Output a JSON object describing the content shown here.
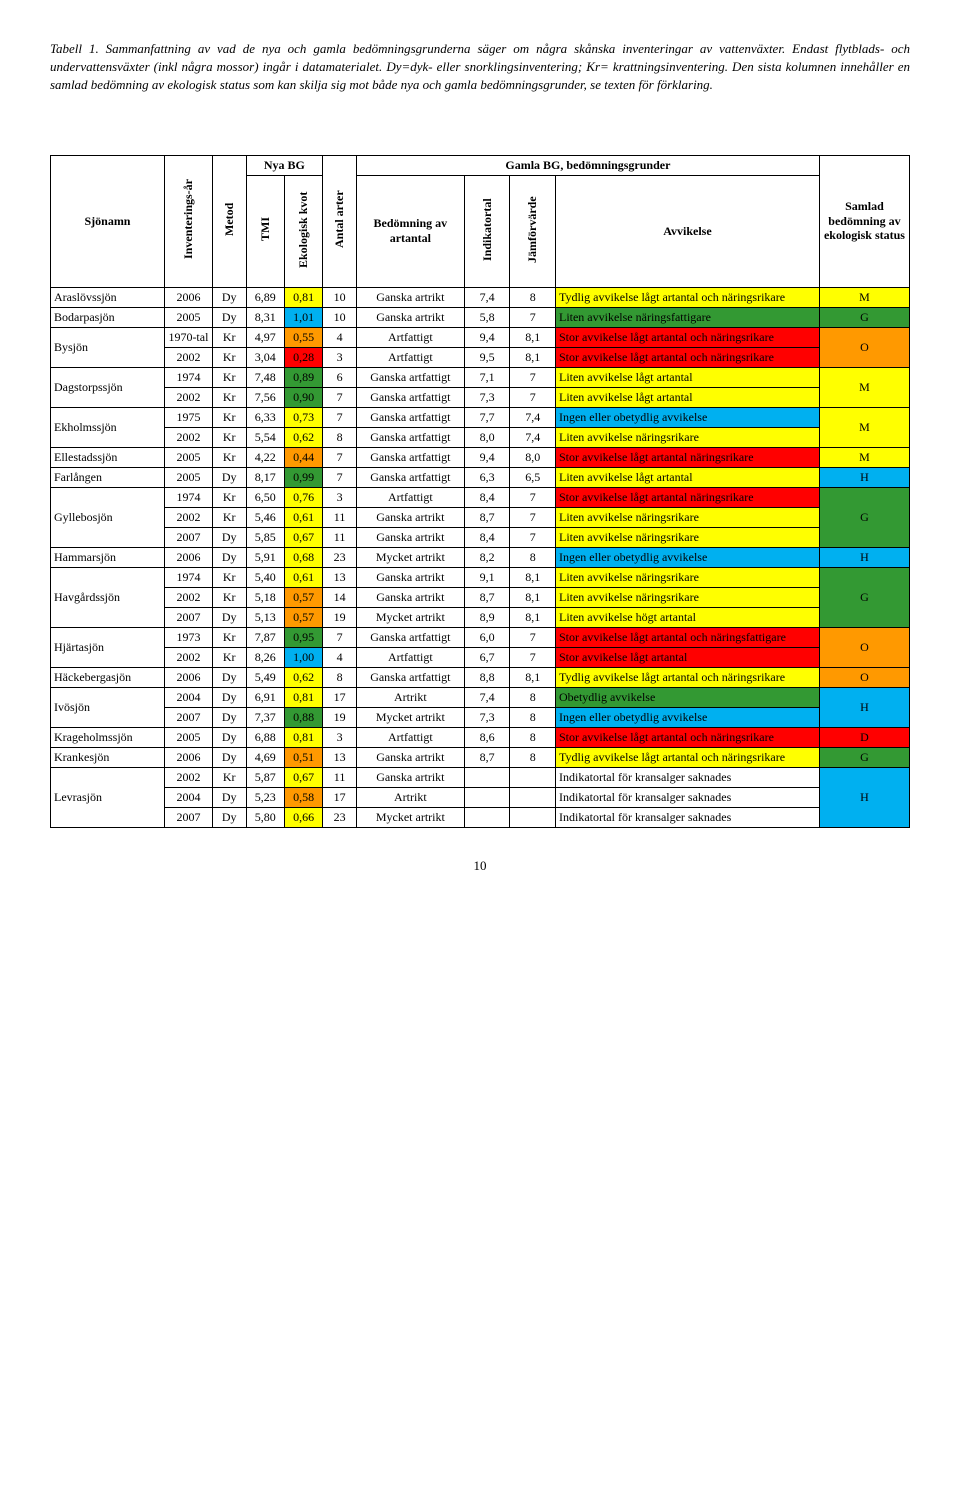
{
  "caption": "Tabell 1. Sammanfattning av vad de nya och gamla bedömningsgrunderna säger om några skånska inventeringar av vattenväxter. Endast flytblads- och undervattensväxter (inkl några mossor) ingår i datamaterialet. Dy=dyk- eller snorklingsinventering; Kr= krattningsinventering. Den sista kolumnen innehåller en samlad bedömning av ekologisk status som kan skilja sig mot både nya och gamla bedömningsgrunder, se texten för förklaring.",
  "colors": {
    "yellow": "#ffff00",
    "orange": "#ff9900",
    "red": "#ff0000",
    "green": "#339933",
    "cyan": "#00b0f0",
    "green2": "#33cc33"
  },
  "headers": {
    "nya": "Nya BG",
    "gamla": "Gamla BG, bedömningsgrunder",
    "sjonamn": "Sjönamn",
    "inv_ar": "Inventerings-år",
    "metod": "Metod",
    "tmi": "TMI",
    "ek_kvot": "Ekologisk kvot",
    "antal": "Antal arter",
    "bedomning": "Bedömning av artantal",
    "indik": "Indikatortal",
    "jamfor": "Jämförvärde",
    "avvik": "Avvikelse",
    "samlad": "Samlad bedömning av ekologisk status"
  },
  "rows": [
    {
      "lake": "Araslövssjön",
      "sub": [
        {
          "ar": "2006",
          "met": "Dy",
          "tmi": "6,89",
          "ek": "0,81",
          "ekc": "yellow",
          "n": "10",
          "bed": "Ganska artrikt",
          "ind": "7,4",
          "jam": "8",
          "avv": "Tydlig avvikelse lågt artantal och näringsrikare",
          "avvc": "yellow"
        }
      ],
      "sam": "M",
      "samc": "yellow"
    },
    {
      "lake": "Bodarpasjön",
      "sub": [
        {
          "ar": "2005",
          "met": "Dy",
          "tmi": "8,31",
          "ek": "1,01",
          "ekc": "cyan",
          "n": "10",
          "bed": "Ganska artrikt",
          "ind": "5,8",
          "jam": "7",
          "avv": "Liten avvikelse näringsfattigare",
          "avvc": "green"
        }
      ],
      "sam": "G",
      "samc": "green"
    },
    {
      "lake": "Bysjön",
      "sub": [
        {
          "ar": "1970-tal",
          "met": "Kr",
          "tmi": "4,97",
          "ek": "0,55",
          "ekc": "orange",
          "n": "4",
          "bed": "Artfattigt",
          "ind": "9,4",
          "jam": "8,1",
          "avv": "Stor avvikelse lågt artantal och näringsrikare",
          "avvc": "red"
        },
        {
          "ar": "2002",
          "met": "Kr",
          "tmi": "3,04",
          "ek": "0,28",
          "ekc": "red",
          "n": "3",
          "bed": "Artfattigt",
          "ind": "9,5",
          "jam": "8,1",
          "avv": "Stor avvikelse lågt artantal och näringsrikare",
          "avvc": "red"
        }
      ],
      "sam": "O",
      "samc": "orange"
    },
    {
      "lake": "Dagstorpssjön",
      "sub": [
        {
          "ar": "1974",
          "met": "Kr",
          "tmi": "7,48",
          "ek": "0,89",
          "ekc": "green",
          "n": "6",
          "bed": "Ganska artfattigt",
          "ind": "7,1",
          "jam": "7",
          "avv": "Liten avvikelse lågt artantal",
          "avvc": "yellow"
        },
        {
          "ar": "2002",
          "met": "Kr",
          "tmi": "7,56",
          "ek": "0,90",
          "ekc": "green",
          "n": "7",
          "bed": "Ganska artfattigt",
          "ind": "7,3",
          "jam": "7",
          "avv": "Liten avvikelse lågt artantal",
          "avvc": "yellow"
        }
      ],
      "sam": "M",
      "samc": "yellow"
    },
    {
      "lake": "Ekholmssjön",
      "sub": [
        {
          "ar": "1975",
          "met": "Kr",
          "tmi": "6,33",
          "ek": "0,73",
          "ekc": "yellow",
          "n": "7",
          "bed": "Ganska artfattigt",
          "ind": "7,7",
          "jam": "7,4",
          "avv": "Ingen eller obetydlig avvikelse",
          "avvc": "cyan"
        },
        {
          "ar": "2002",
          "met": "Kr",
          "tmi": "5,54",
          "ek": "0,62",
          "ekc": "yellow",
          "n": "8",
          "bed": "Ganska artfattigt",
          "ind": "8,0",
          "jam": "7,4",
          "avv": "Liten avvikelse näringsrikare",
          "avvc": "yellow"
        }
      ],
      "sam": "M",
      "samc": "yellow"
    },
    {
      "lake": "Ellestadssjön",
      "sub": [
        {
          "ar": "2005",
          "met": "Kr",
          "tmi": "4,22",
          "ek": "0,44",
          "ekc": "orange",
          "n": "7",
          "bed": "Ganska artfattigt",
          "ind": "9,4",
          "jam": "8,0",
          "avv": "Stor avvikelse lågt artantal näringsrikare",
          "avvc": "red"
        }
      ],
      "sam": "M",
      "samc": "yellow"
    },
    {
      "lake": "Farlången",
      "sub": [
        {
          "ar": "2005",
          "met": "Dy",
          "tmi": "8,17",
          "ek": "0,99",
          "ekc": "green",
          "n": "7",
          "bed": "Ganska artfattigt",
          "ind": "6,3",
          "jam": "6,5",
          "avv": "Liten avvikelse lågt artantal",
          "avvc": "yellow"
        }
      ],
      "sam": "H",
      "samc": "cyan"
    },
    {
      "lake": "Gyllebosjön",
      "sub": [
        {
          "ar": "1974",
          "met": "Kr",
          "tmi": "6,50",
          "ek": "0,76",
          "ekc": "yellow",
          "n": "3",
          "bed": "Artfattigt",
          "ind": "8,4",
          "jam": "7",
          "avv": "Stor avvikelse lågt artantal näringsrikare",
          "avvc": "red"
        },
        {
          "ar": "2002",
          "met": "Kr",
          "tmi": "5,46",
          "ek": "0,61",
          "ekc": "yellow",
          "n": "11",
          "bed": "Ganska artrikt",
          "ind": "8,7",
          "jam": "7",
          "avv": "Liten avvikelse näringsrikare",
          "avvc": "yellow"
        },
        {
          "ar": "2007",
          "met": "Dy",
          "tmi": "5,85",
          "ek": "0,67",
          "ekc": "yellow",
          "n": "11",
          "bed": "Ganska artrikt",
          "ind": "8,4",
          "jam": "7",
          "avv": "Liten avvikelse näringsrikare",
          "avvc": "yellow"
        }
      ],
      "sam": "G",
      "samc": "green"
    },
    {
      "lake": "Hammarsjön",
      "sub": [
        {
          "ar": "2006",
          "met": "Dy",
          "tmi": "5,91",
          "ek": "0,68",
          "ekc": "yellow",
          "n": "23",
          "bed": "Mycket artrikt",
          "ind": "8,2",
          "jam": "8",
          "avv": "Ingen eller obetydlig avvikelse",
          "avvc": "cyan"
        }
      ],
      "sam": "H",
      "samc": "cyan"
    },
    {
      "lake": "Havgårdssjön",
      "sub": [
        {
          "ar": "1974",
          "met": "Kr",
          "tmi": "5,40",
          "ek": "0,61",
          "ekc": "yellow",
          "n": "13",
          "bed": "Ganska artrikt",
          "ind": "9,1",
          "jam": "8,1",
          "avv": "Liten avvikelse näringsrikare",
          "avvc": "yellow"
        },
        {
          "ar": "2002",
          "met": "Kr",
          "tmi": "5,18",
          "ek": "0,57",
          "ekc": "orange",
          "n": "14",
          "bed": "Ganska artrikt",
          "ind": "8,7",
          "jam": "8,1",
          "avv": "Liten avvikelse näringsrikare",
          "avvc": "yellow"
        },
        {
          "ar": "2007",
          "met": "Dy",
          "tmi": "5,13",
          "ek": "0,57",
          "ekc": "orange",
          "n": "19",
          "bed": "Mycket artrikt",
          "ind": "8,9",
          "jam": "8,1",
          "avv": "Liten avvikelse högt artantal",
          "avvc": "yellow"
        }
      ],
      "sam": "G",
      "samc": "green"
    },
    {
      "lake": "Hjärtasjön",
      "sub": [
        {
          "ar": "1973",
          "met": "Kr",
          "tmi": "7,87",
          "ek": "0,95",
          "ekc": "green",
          "n": "7",
          "bed": "Ganska artfattigt",
          "ind": "6,0",
          "jam": "7",
          "avv": "Stor avvikelse lågt artantal och näringsfattigare",
          "avvc": "red"
        },
        {
          "ar": "2002",
          "met": "Kr",
          "tmi": "8,26",
          "ek": "1,00",
          "ekc": "cyan",
          "n": "4",
          "bed": "Artfattigt",
          "ind": "6,7",
          "jam": "7",
          "avv": "Stor avvikelse lågt artantal",
          "avvc": "red"
        }
      ],
      "sam": "O",
      "samc": "orange"
    },
    {
      "lake": "Häckebergasjön",
      "sub": [
        {
          "ar": "2006",
          "met": "Dy",
          "tmi": "5,49",
          "ek": "0,62",
          "ekc": "yellow",
          "n": "8",
          "bed": "Ganska artfattigt",
          "ind": "8,8",
          "jam": "8,1",
          "avv": "Tydlig avvikelse lågt artantal och näringsrikare",
          "avvc": "yellow"
        }
      ],
      "sam": "O",
      "samc": "orange"
    },
    {
      "lake": "Ivösjön",
      "sub": [
        {
          "ar": "2004",
          "met": "Dy",
          "tmi": "6,91",
          "ek": "0,81",
          "ekc": "yellow",
          "n": "17",
          "bed": "Artrikt",
          "ind": "7,4",
          "jam": "8",
          "avv": "Obetydlig avvikelse",
          "avvc": "green"
        },
        {
          "ar": "2007",
          "met": "Dy",
          "tmi": "7,37",
          "ek": "0,88",
          "ekc": "green",
          "n": "19",
          "bed": "Mycket artrikt",
          "ind": "7,3",
          "jam": "8",
          "avv": "Ingen eller obetydlig avvikelse",
          "avvc": "cyan"
        }
      ],
      "sam": "H",
      "samc": "cyan"
    },
    {
      "lake": "Krageholmssjön",
      "sub": [
        {
          "ar": "2005",
          "met": "Dy",
          "tmi": "6,88",
          "ek": "0,81",
          "ekc": "yellow",
          "n": "3",
          "bed": "Artfattigt",
          "ind": "8,6",
          "jam": "8",
          "avv": "Stor avvikelse lågt artantal och näringsrikare",
          "avvc": "red"
        }
      ],
      "sam": "D",
      "samc": "red"
    },
    {
      "lake": "Krankesjön",
      "sub": [
        {
          "ar": "2006",
          "met": "Dy",
          "tmi": "4,69",
          "ek": "0,51",
          "ekc": "orange",
          "n": "13",
          "bed": "Ganska artrikt",
          "ind": "8,7",
          "jam": "8",
          "avv": "Tydlig avvikelse lågt artantal och näringsrikare",
          "avvc": "yellow"
        }
      ],
      "sam": "G",
      "samc": "green"
    },
    {
      "lake": "Levrasjön",
      "sub": [
        {
          "ar": "2002",
          "met": "Kr",
          "tmi": "5,87",
          "ek": "0,67",
          "ekc": "yellow",
          "n": "11",
          "bed": "Ganska artrikt",
          "ind": "",
          "jam": "",
          "avv": "Indikatortal för kransalger saknades",
          "avvc": ""
        },
        {
          "ar": "2004",
          "met": "Dy",
          "tmi": "5,23",
          "ek": "0,58",
          "ekc": "orange",
          "n": "17",
          "bed": "Artrikt",
          "ind": "",
          "jam": "",
          "avv": "Indikatortal för kransalger saknades",
          "avvc": ""
        },
        {
          "ar": "2007",
          "met": "Dy",
          "tmi": "5,80",
          "ek": "0,66",
          "ekc": "yellow",
          "n": "23",
          "bed": "Mycket artrikt",
          "ind": "",
          "jam": "",
          "avv": "Indikatortal för kransalger saknades",
          "avvc": ""
        }
      ],
      "sam": "H",
      "samc": "cyan"
    }
  ],
  "pageNumber": "10"
}
